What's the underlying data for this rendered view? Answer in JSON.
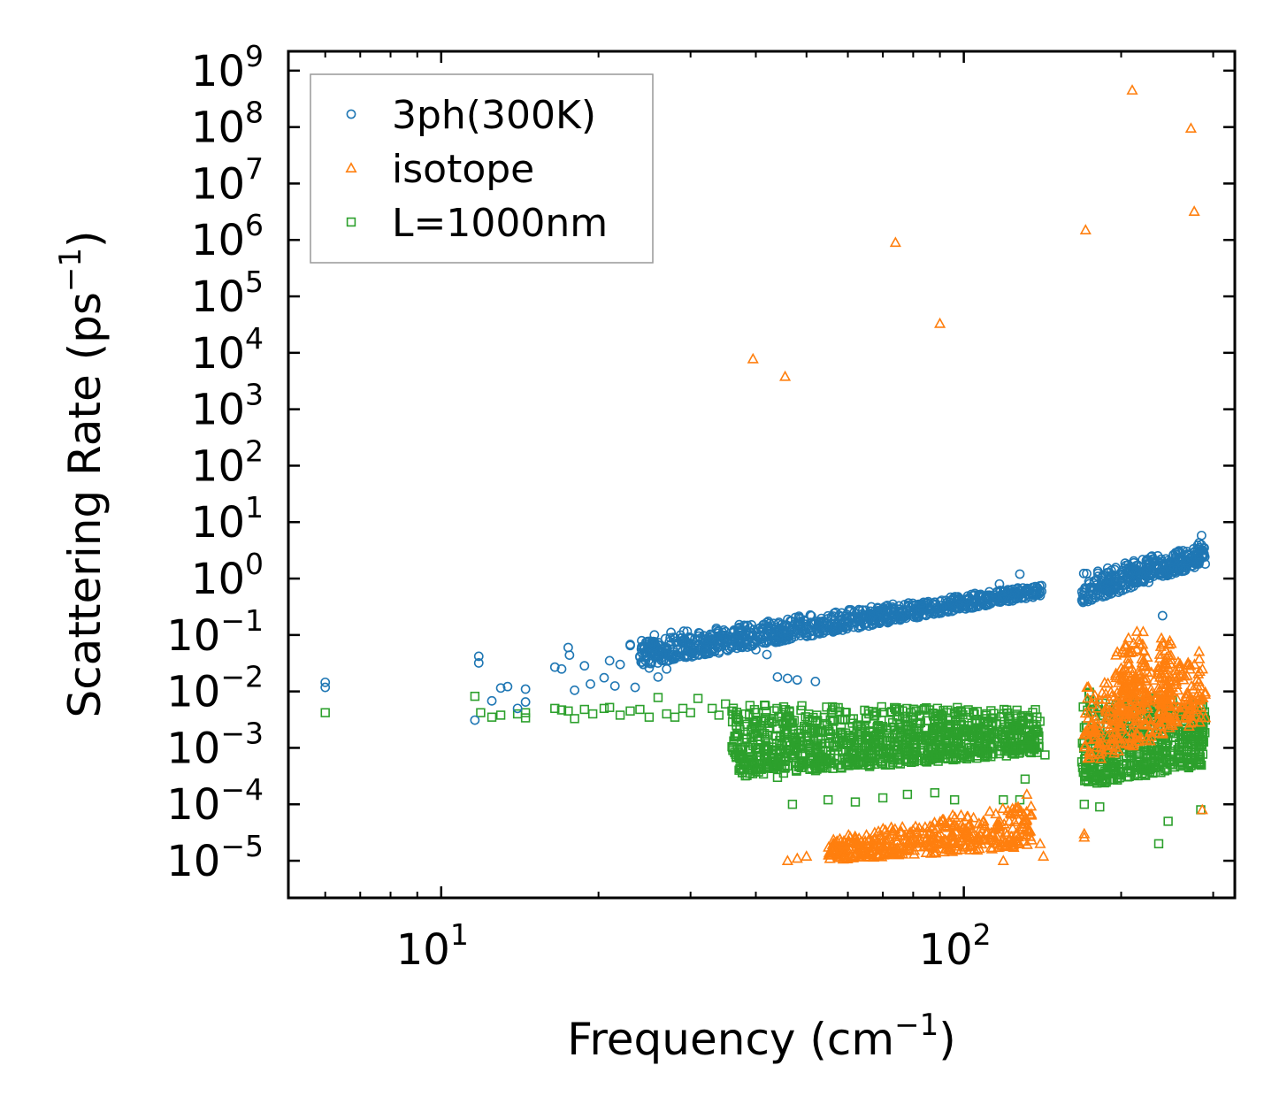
{
  "chart_data": {
    "type": "scatter",
    "title": "",
    "xlabel": "Frequency (cm",
    "xlabel_sup": "−1",
    "xlabel_tail": ")",
    "ylabel": "Scattering Rate (ps",
    "ylabel_sup": "−1",
    "ylabel_tail": ")",
    "xscale": "log",
    "yscale": "log",
    "xlim": [
      5.1,
      330
    ],
    "ylim": [
      2.2e-06,
      2200000000.0
    ],
    "x_ticks": [
      {
        "value": 10,
        "base": "10",
        "exp": "1"
      },
      {
        "value": 100,
        "base": "10",
        "exp": "2"
      }
    ],
    "y_ticks": [
      {
        "value": 1e-05,
        "base": "10",
        "exp": "−5"
      },
      {
        "value": 0.0001,
        "base": "10",
        "exp": "−4"
      },
      {
        "value": 0.001,
        "base": "10",
        "exp": "−3"
      },
      {
        "value": 0.01,
        "base": "10",
        "exp": "−2"
      },
      {
        "value": 0.1,
        "base": "10",
        "exp": "−1"
      },
      {
        "value": 1,
        "base": "10",
        "exp": "0"
      },
      {
        "value": 10,
        "base": "10",
        "exp": "1"
      },
      {
        "value": 100,
        "base": "10",
        "exp": "2"
      },
      {
        "value": 1000,
        "base": "10",
        "exp": "3"
      },
      {
        "value": 10000,
        "base": "10",
        "exp": "4"
      },
      {
        "value": 100000,
        "base": "10",
        "exp": "5"
      },
      {
        "value": 1000000,
        "base": "10",
        "exp": "6"
      },
      {
        "value": 10000000,
        "base": "10",
        "exp": "7"
      },
      {
        "value": 100000000,
        "base": "10",
        "exp": "8"
      },
      {
        "value": 1000000000,
        "base": "10",
        "exp": "9"
      }
    ],
    "legend_position": "top-left",
    "series": [
      {
        "name": "3ph(300K)",
        "marker": "circle",
        "color": "#1f77b4",
        "points": [
          [
            6.0,
            0.0145
          ],
          [
            6.0,
            0.0118
          ],
          [
            11.6,
            0.0031
          ],
          [
            11.8,
            0.042
          ],
          [
            11.8,
            0.032
          ],
          [
            12.5,
            0.0068
          ],
          [
            13.0,
            0.0115
          ],
          [
            13.4,
            0.0122
          ],
          [
            14.0,
            0.005
          ],
          [
            14.5,
            0.011
          ],
          [
            14.5,
            0.0065
          ],
          [
            16.5,
            0.027
          ],
          [
            17.0,
            0.025
          ],
          [
            17.5,
            0.06
          ],
          [
            17.6,
            0.044
          ],
          [
            18.0,
            0.0105
          ],
          [
            18.8,
            0.0285
          ],
          [
            19.3,
            0.0135
          ],
          [
            20.5,
            0.0175
          ],
          [
            21.0,
            0.035
          ],
          [
            21.5,
            0.0125
          ],
          [
            22.0,
            0.03
          ],
          [
            23.0,
            0.065
          ],
          [
            23.0,
            0.068
          ],
          [
            23.5,
            0.0118
          ],
          [
            24.0,
            0.042
          ],
          [
            25.0,
            0.026
          ],
          [
            26.0,
            0.018
          ],
          [
            27.0,
            0.025
          ],
          [
            27.5,
            0.068
          ],
          [
            28.0,
            0.04
          ],
          [
            29.0,
            0.052
          ],
          [
            30.0,
            0.06
          ],
          [
            30.0,
            0.09
          ],
          [
            31.0,
            0.045
          ],
          [
            32.0,
            0.075
          ],
          [
            33.0,
            0.055
          ],
          [
            34.0,
            0.048
          ],
          [
            35.0,
            0.09
          ],
          [
            36.0,
            0.06
          ],
          [
            37.0,
            0.12
          ],
          [
            38.0,
            0.07
          ],
          [
            39.0,
            0.1
          ],
          [
            40.0,
            0.055
          ],
          [
            42.0,
            0.045
          ],
          [
            44.0,
            0.018
          ],
          [
            46.0,
            0.017
          ],
          [
            48.0,
            0.016
          ],
          [
            52.0,
            0.015
          ]
        ],
        "bands": [
          {
            "x": [
              24.0,
              142.0
            ],
            "y_lo": [
              0.028,
              0.5
            ],
            "y_hi": [
              0.095,
              0.8
            ],
            "count": 900
          },
          {
            "x": [
              168.0,
              290.0
            ],
            "y_lo": [
              0.35,
              1.8
            ],
            "y_hi": [
              1.3,
              4.5
            ],
            "count": 360
          }
        ],
        "extra_points": [
          [
            117.0,
            0.8
          ],
          [
            120.0,
            0.6
          ],
          [
            128.0,
            1.2
          ],
          [
            140.0,
            0.5
          ],
          [
            240.0,
            0.22
          ],
          [
            285.0,
            5.8
          ],
          [
            282.0,
            4.3
          ],
          [
            282.0,
            3.5
          ]
        ]
      },
      {
        "name": "isotope",
        "marker": "triangle",
        "color": "#ff7f0e",
        "points": [
          [
            39.5,
            7800.0
          ],
          [
            45.5,
            3800.0
          ],
          [
            74.0,
            900000.0
          ],
          [
            90.0,
            33000.0
          ],
          [
            171.0,
            1500000.0
          ],
          [
            210.0,
            450000000.0
          ],
          [
            272.0,
            95000000.0
          ],
          [
            276.0,
            3200000.0
          ],
          [
            46.0,
            1e-05
          ],
          [
            48.0,
            1.1e-05
          ],
          [
            50.0,
            1.2e-05
          ],
          [
            119.0,
            1e-05
          ],
          [
            170.0,
            3e-05
          ],
          [
            170.0,
            2.6e-05
          ]
        ],
        "bands": [
          {
            "x": [
              55.0,
              135.0
            ],
            "y_lo": [
              1e-05,
              1.8e-05
            ],
            "y_hi": [
              2.5e-05,
              0.00012
            ],
            "count": 450
          },
          {
            "x": [
              170.0,
              290.0
            ],
            "y_lo": [
              0.0005,
              0.003
            ],
            "y_hi": [
              0.012,
              0.06
            ],
            "count": 300
          },
          {
            "x": [
              195.0,
              225.0
            ],
            "y_lo": [
              0.003,
              0.005
            ],
            "y_hi": [
              0.06,
              0.18
            ],
            "count": 120
          },
          {
            "x": [
              235.0,
              250.0
            ],
            "y_lo": [
              0.003,
              0.004
            ],
            "y_hi": [
              0.08,
              0.16
            ],
            "count": 60
          }
        ],
        "extra_points": [
          [
            132.0,
            0.00015
          ],
          [
            140.0,
            2e-05
          ],
          [
            142.0,
            1.2e-05
          ],
          [
            286.0,
            8e-05
          ]
        ]
      },
      {
        "name": "L=1000nm",
        "marker": "square",
        "color": "#2ca02c",
        "points": [
          [
            6.0,
            0.0042
          ],
          [
            11.6,
            0.0082
          ],
          [
            11.9,
            0.0042
          ],
          [
            12.5,
            0.0035
          ],
          [
            13.0,
            0.0038
          ],
          [
            14.0,
            0.004
          ],
          [
            14.5,
            0.0034
          ],
          [
            14.5,
            0.0042
          ],
          [
            16.5,
            0.005
          ],
          [
            17.0,
            0.0047
          ],
          [
            17.5,
            0.0045
          ],
          [
            18.0,
            0.0033
          ],
          [
            18.8,
            0.0048
          ],
          [
            19.5,
            0.004
          ],
          [
            20.5,
            0.005
          ],
          [
            21.0,
            0.0052
          ],
          [
            22.0,
            0.0038
          ],
          [
            23.0,
            0.0045
          ],
          [
            24.0,
            0.0048
          ],
          [
            25.0,
            0.0035
          ],
          [
            26.0,
            0.0078
          ],
          [
            27.0,
            0.004
          ],
          [
            28.0,
            0.0035
          ],
          [
            29.0,
            0.005
          ],
          [
            30.0,
            0.0042
          ],
          [
            31.0,
            0.0075
          ],
          [
            33.0,
            0.005
          ],
          [
            34.0,
            0.0038
          ],
          [
            35.0,
            0.006
          ],
          [
            36.0,
            0.0045
          ]
        ],
        "bands": [
          {
            "x": [
              36.0,
              140.0
            ],
            "y_lo": [
              0.0003,
              0.0008
            ],
            "y_hi": [
              0.006,
              0.005
            ],
            "count": 1100
          },
          {
            "x": [
              168.0,
              290.0
            ],
            "y_lo": [
              0.0002,
              0.0005
            ],
            "y_hi": [
              0.012,
              0.006
            ],
            "count": 520
          }
        ],
        "extra_points": [
          [
            41.0,
            0.00045
          ],
          [
            44.0,
            0.0003
          ],
          [
            47.0,
            0.0001
          ],
          [
            55.0,
            0.00012
          ],
          [
            62.0,
            0.00011
          ],
          [
            70.0,
            0.00013
          ],
          [
            78.0,
            0.00015
          ],
          [
            88.0,
            0.00016
          ],
          [
            96.0,
            0.00012
          ],
          [
            119.0,
            0.00012
          ],
          [
            128.0,
            0.00012
          ],
          [
            131.0,
            0.00028
          ],
          [
            143.0,
            0.00075
          ],
          [
            170.0,
            0.0001
          ],
          [
            182.0,
            9e-05
          ],
          [
            236.0,
            2e-05
          ],
          [
            246.0,
            5e-05
          ],
          [
            284.0,
            8e-05
          ]
        ]
      }
    ]
  }
}
